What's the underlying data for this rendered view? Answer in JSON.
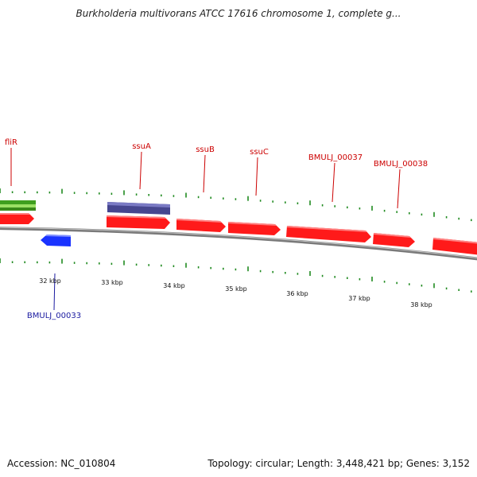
{
  "title": "Burkholderia multivorans ATCC 17616 chromosome 1, complete g...",
  "footer": {
    "accession": "Accession: NC_010804",
    "stats": "Topology: circular; Length: 3,448,421 bp; Genes: 3,152"
  },
  "colors": {
    "gene_forward": "#ff1a1a",
    "gene_reverse": "#1a33ff",
    "feature_block": "#4a4a9a",
    "green_feature": "#66cc33",
    "backbone": "#8a8a8a",
    "tick": "#1f8a1f",
    "label_red": "#cc0000",
    "label_blue": "#1a1aa0"
  },
  "ruler_labels": [
    "32 kbp",
    "33 kbp",
    "34 kbp",
    "35 kbp",
    "36 kbp",
    "37 kbp",
    "38 kbp"
  ],
  "gene_labels_top": [
    "fliR",
    "ssuA",
    "ssuB",
    "ssuC",
    "BMULJ_00037",
    "BMULJ_00038"
  ],
  "gene_labels_bottom": [
    "BMULJ_00033"
  ]
}
